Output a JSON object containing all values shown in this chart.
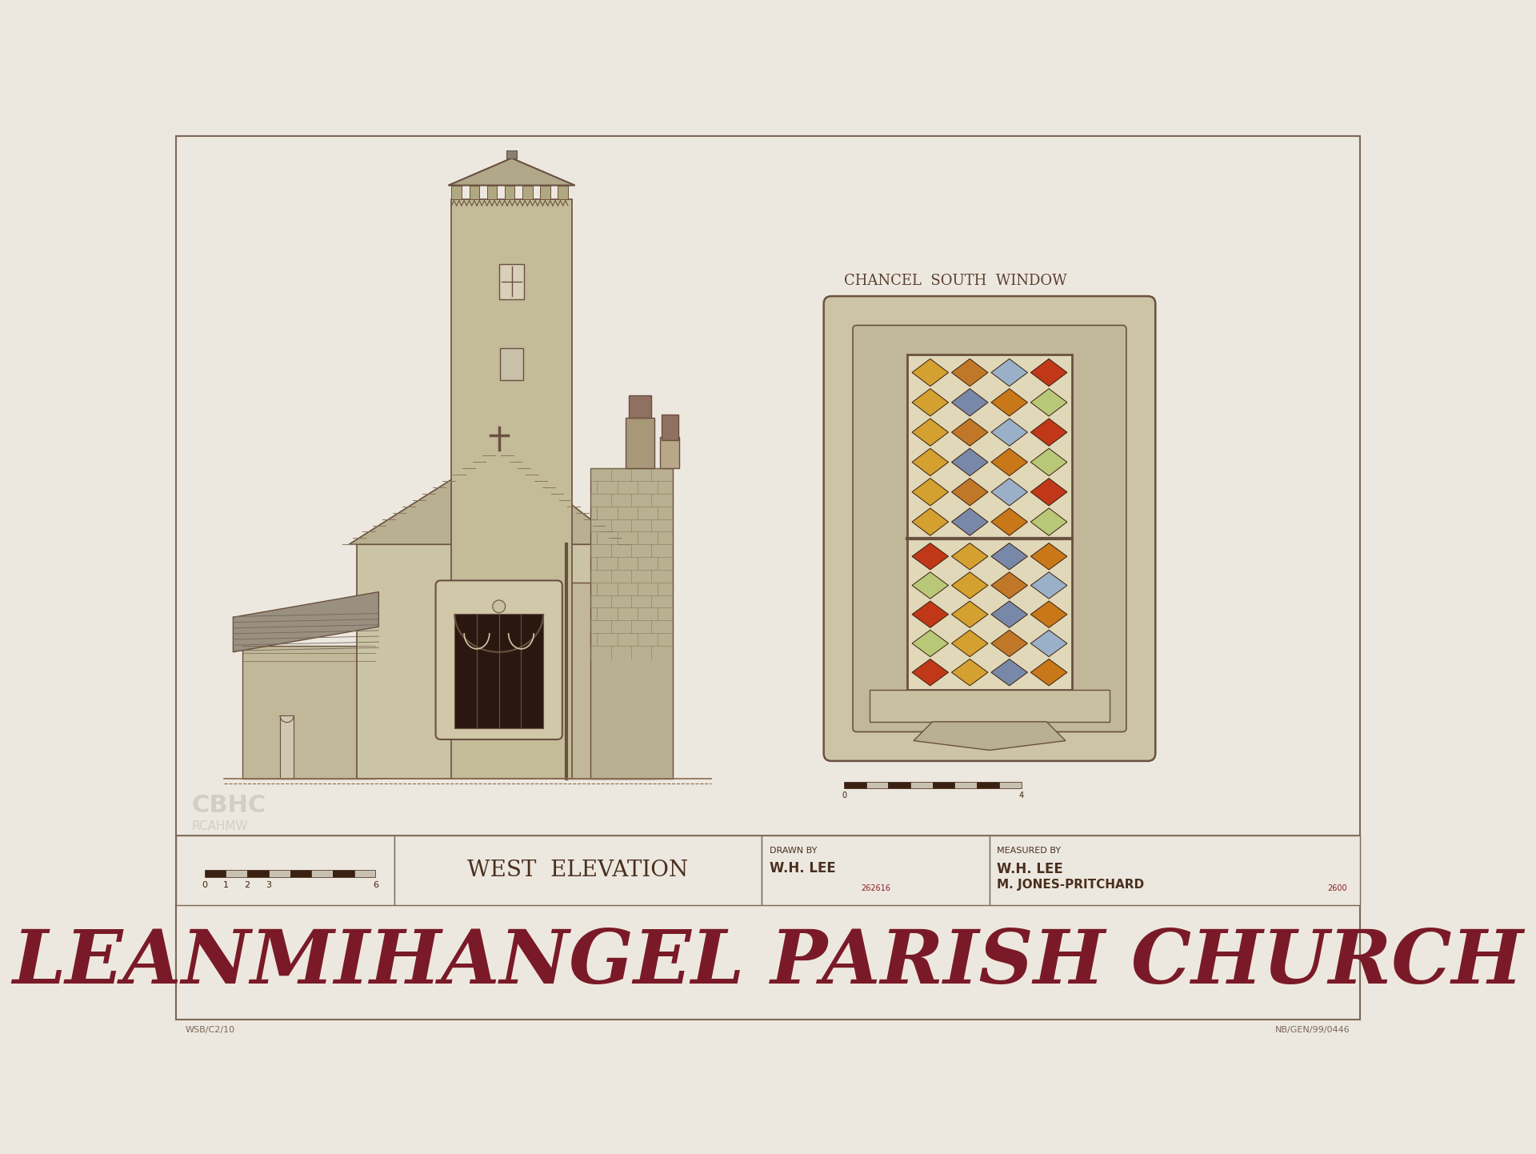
{
  "bg_color": "#ede8df",
  "paper_color": "#ede8df",
  "border_color": "#7a6858",
  "title_text": "LEANMIHANGEL PARISH CHURCH",
  "title_color": "#7a1a28",
  "title_fontsize": 68,
  "subtitle_west": "WEST  ELEVATION",
  "subtitle_chancel": "CHANCEL  SOUTH  WINDOW",
  "drawn_by_label": "DRAWN BY",
  "drawn_by_value": "W.H. LEE",
  "measured_by_label": "MEASURED BY",
  "measured_by_line1": "W.H. LEE",
  "measured_by_line2": "M. JONES-PRITCHARD",
  "year_right": "2600",
  "ref_left": "262616",
  "wsb_ref": "WSB/C2/10",
  "nb_ref": "NB/GEN/99/0446",
  "wall_color": "#c8c0a0",
  "wall_color2": "#beb898",
  "roof_color": "#b0a888",
  "slate_color": "#9a9280",
  "dark_stone": "#a89878",
  "line_color": "#6a5040",
  "window_dark": "#3a2818",
  "glass_colors": [
    "#d4a030",
    "#c07828",
    "#9ab0c8",
    "#c03818",
    "#d4a030",
    "#7888a8",
    "#c87818",
    "#b8c878"
  ],
  "scale_bar_dark": "#3a2010",
  "info_line_color": "#8b1a2a"
}
